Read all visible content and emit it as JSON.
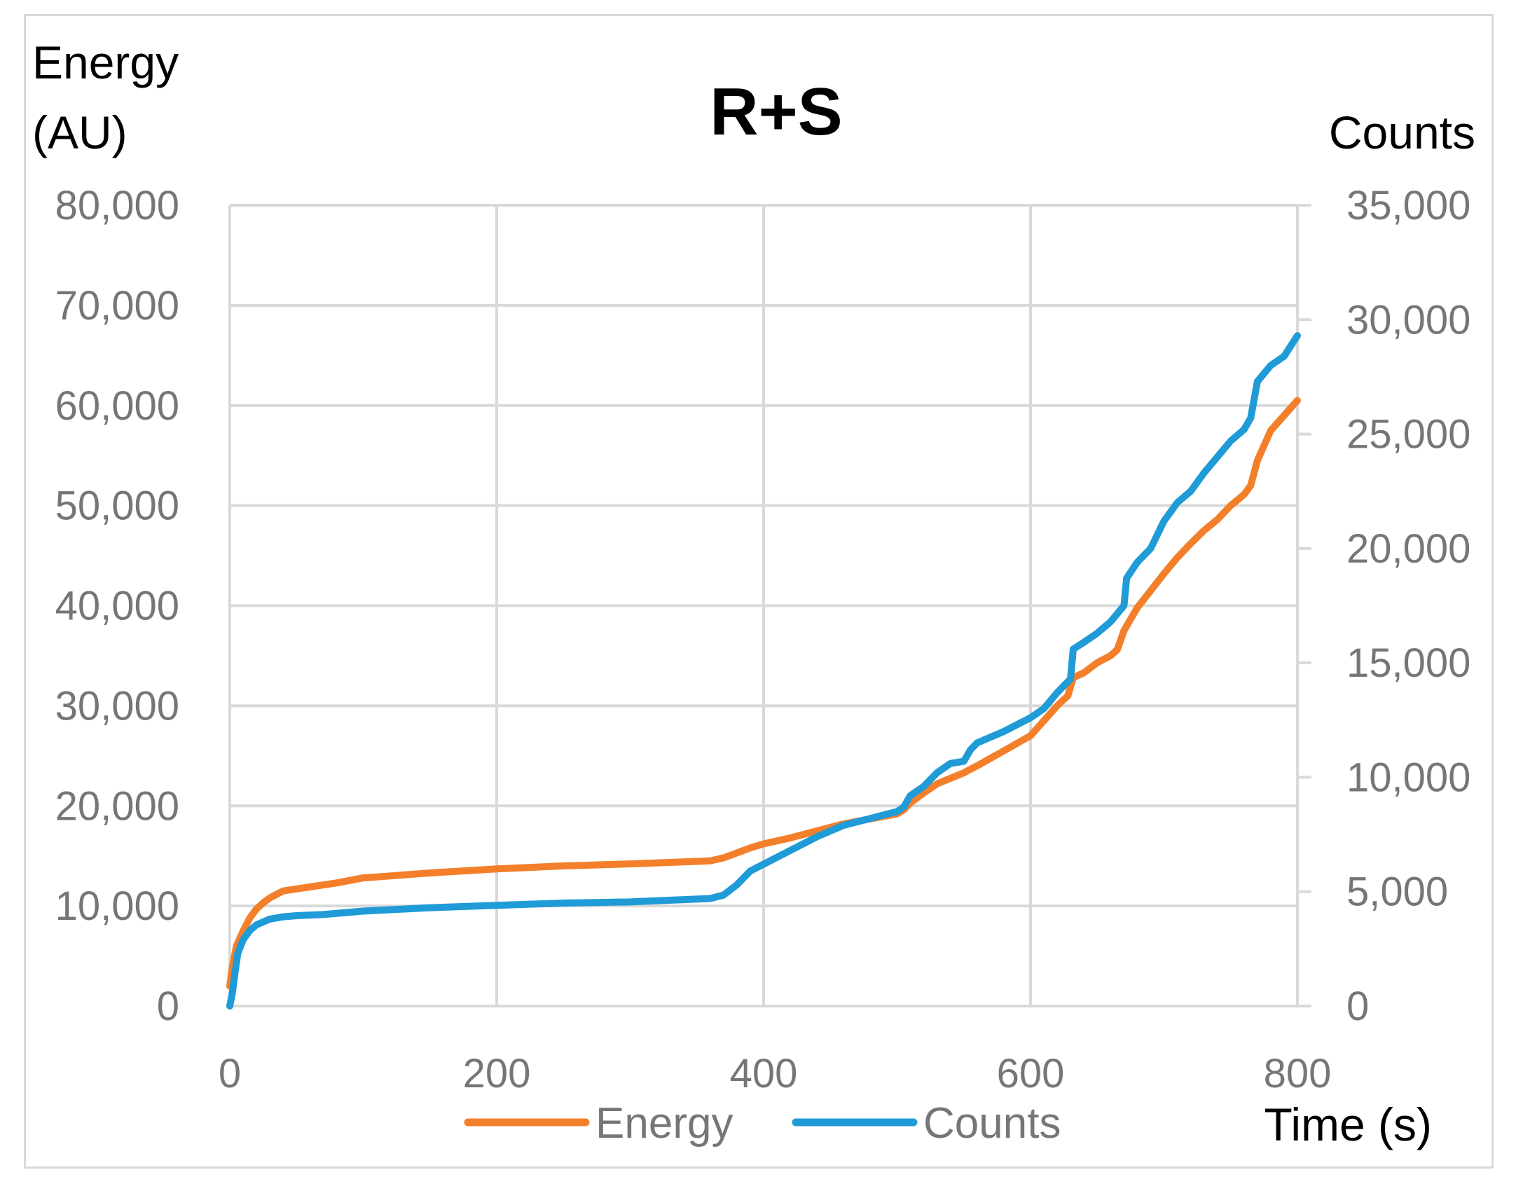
{
  "chart_data": {
    "type": "line",
    "title": "R+S",
    "xlabel": "Time (s)",
    "ylabel_left": [
      "Energy",
      "(AU)"
    ],
    "ylabel_right": "Counts",
    "xlim": [
      0,
      800
    ],
    "ylim_left": [
      0,
      80000
    ],
    "ylim_right": [
      0,
      35000
    ],
    "xticks": [
      0,
      200,
      400,
      600,
      800
    ],
    "xtick_labels": [
      "0",
      "200",
      "400",
      "600",
      "800"
    ],
    "yticks_left": [
      0,
      10000,
      20000,
      30000,
      40000,
      50000,
      60000,
      70000,
      80000
    ],
    "ytick_labels_left": [
      "0",
      "10,000",
      "20,000",
      "30,000",
      "40,000",
      "50,000",
      "60,000",
      "70,000",
      "80,000"
    ],
    "yticks_right": [
      0,
      5000,
      10000,
      15000,
      20000,
      25000,
      30000,
      35000
    ],
    "ytick_labels_right": [
      "0",
      "5,000",
      "10,000",
      "15,000",
      "20,000",
      "25,000",
      "30,000",
      "35,000"
    ],
    "grid": true,
    "legend_position": "bottom",
    "series": [
      {
        "name": "Energy",
        "axis": "left",
        "color": "#f47f2a",
        "x": [
          0,
          2,
          5,
          10,
          15,
          20,
          25,
          30,
          40,
          50,
          60,
          80,
          100,
          120,
          150,
          200,
          250,
          300,
          340,
          360,
          370,
          380,
          390,
          400,
          420,
          440,
          460,
          480,
          500,
          505,
          510,
          520,
          530,
          550,
          560,
          580,
          600,
          610,
          620,
          628,
          632,
          640,
          650,
          660,
          665,
          670,
          680,
          690,
          700,
          710,
          720,
          730,
          740,
          750,
          760,
          765,
          770,
          775,
          780,
          790,
          800
        ],
        "values": [
          2000,
          4000,
          6000,
          7500,
          8800,
          9700,
          10300,
          10800,
          11500,
          11700,
          11900,
          12300,
          12800,
          13000,
          13300,
          13700,
          14000,
          14200,
          14400,
          14500,
          14800,
          15300,
          15800,
          16200,
          16800,
          17500,
          18200,
          18700,
          19200,
          19600,
          20300,
          21300,
          22200,
          23300,
          24000,
          25500,
          27000,
          28500,
          30000,
          31000,
          32800,
          33300,
          34300,
          35000,
          35600,
          37500,
          39800,
          41500,
          43200,
          44800,
          46200,
          47500,
          48600,
          50000,
          51100,
          52000,
          54500,
          56000,
          57500,
          59000,
          60500
        ]
      },
      {
        "name": "Counts",
        "axis": "right",
        "color": "#1f9bd7",
        "x": [
          0,
          2,
          4,
          6,
          10,
          15,
          20,
          30,
          40,
          50,
          70,
          100,
          150,
          200,
          250,
          300,
          320,
          340,
          360,
          370,
          380,
          390,
          400,
          420,
          440,
          460,
          480,
          500,
          505,
          510,
          520,
          530,
          540,
          550,
          555,
          560,
          580,
          600,
          610,
          620,
          630,
          632,
          640,
          650,
          660,
          670,
          672,
          680,
          690,
          700,
          710,
          720,
          730,
          740,
          750,
          760,
          765,
          770,
          780,
          790,
          800
        ],
        "values": [
          0,
          600,
          1500,
          2300,
          2900,
          3300,
          3550,
          3800,
          3900,
          3950,
          4000,
          4150,
          4300,
          4400,
          4500,
          4550,
          4600,
          4650,
          4700,
          4850,
          5300,
          5900,
          6200,
          6800,
          7400,
          7900,
          8200,
          8500,
          8700,
          9200,
          9600,
          10200,
          10600,
          10700,
          11200,
          11500,
          12000,
          12600,
          13000,
          13700,
          14300,
          15600,
          15900,
          16300,
          16800,
          17500,
          18700,
          19400,
          20000,
          21200,
          22000,
          22500,
          23300,
          24000,
          24700,
          25200,
          25700,
          27300,
          28000,
          28400,
          29300
        ]
      }
    ]
  }
}
